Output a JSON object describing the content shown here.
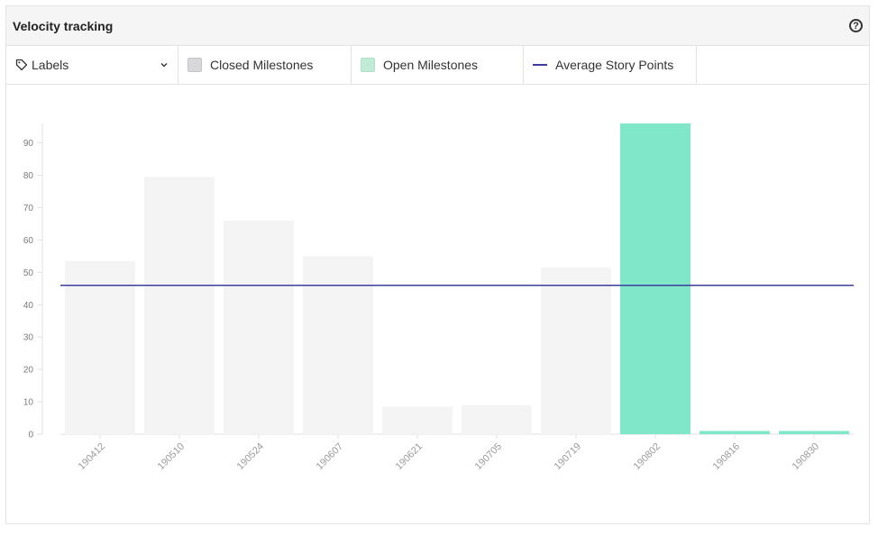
{
  "header": {
    "title": "Velocity tracking",
    "help_icon": "question-circle-icon"
  },
  "legend": {
    "labels_dropdown": "Labels",
    "closed_label": "Closed Milestones",
    "open_label": "Open Milestones",
    "average_label": "Average Story Points"
  },
  "colors": {
    "closed": "#f4f4f5",
    "open": "#80e7c8",
    "average": "#3b3e9e"
  },
  "chart_data": {
    "type": "bar",
    "categories": [
      "190412",
      "190510",
      "190524",
      "190607",
      "190621",
      "190705",
      "190719",
      "190802",
      "190816",
      "190830"
    ],
    "series": [
      {
        "name": "Closed Milestones",
        "values": [
          53.5,
          79.5,
          66,
          55,
          8.5,
          9,
          51.5,
          null,
          null,
          null
        ]
      },
      {
        "name": "Open Milestones",
        "values": [
          null,
          null,
          null,
          null,
          null,
          null,
          null,
          96,
          1,
          1
        ]
      },
      {
        "name": "Average Story Points",
        "type": "line",
        "value": 46
      }
    ],
    "yticks": [
      0,
      10,
      20,
      30,
      40,
      50,
      60,
      70,
      80,
      90
    ],
    "ylim": [
      0,
      96
    ],
    "grid": false,
    "legend_position": "top"
  }
}
